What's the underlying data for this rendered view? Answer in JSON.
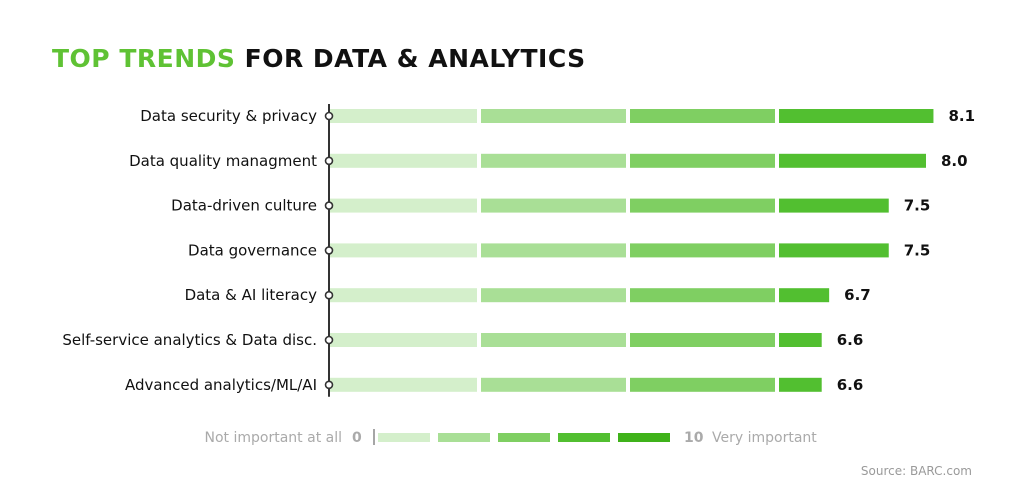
{
  "title": {
    "highlight": "TOP TRENDS",
    "rest": "FOR DATA & ANALYTICS",
    "highlight_color": "#5fc234"
  },
  "colors": {
    "segments": [
      "#d4efcb",
      "#a9df96",
      "#7fcf62",
      "#52bf30"
    ],
    "axis": "#333333",
    "value_text": "#111111",
    "legend_text": "#aaaaaa"
  },
  "chart_data": {
    "type": "bar",
    "orientation": "horizontal",
    "xlim": [
      0,
      10
    ],
    "categories": [
      "Data security & privacy",
      "Data quality managment",
      "Data-driven culture",
      "Data governance",
      "Data & AI literacy",
      "Self-service analytics & Data disc.",
      "Advanced analytics/ML/AI"
    ],
    "values": [
      8.1,
      8.0,
      7.5,
      7.5,
      6.7,
      6.6,
      6.6
    ],
    "value_labels": [
      "8.1",
      "8.0",
      "7.5",
      "7.5",
      "6.7",
      "6.6",
      "6.6"
    ],
    "legend": {
      "min_label": "Not important at all",
      "min_value": "0",
      "max_value": "10",
      "max_label": "Very important"
    }
  },
  "source": "Source: BARC.com"
}
